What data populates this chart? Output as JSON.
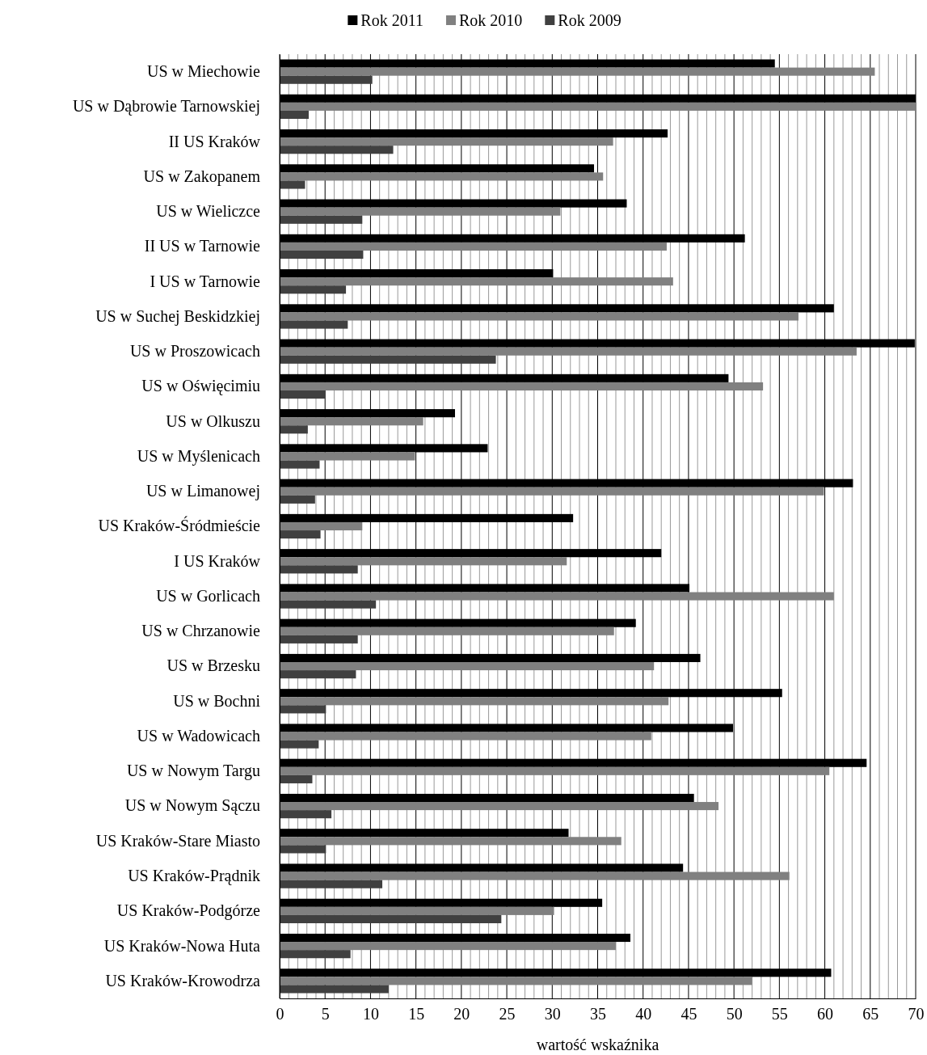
{
  "chart_data": {
    "type": "bar",
    "orientation": "horizontal",
    "xlabel": "wartość wskaźnika",
    "legend": "top",
    "grid": "x",
    "categories": [
      "US w Miechowie",
      "US w Dąbrowie Tarnowskiej",
      "II US Kraków",
      "US w Zakopanem",
      "US w Wieliczce",
      "II US w Tarnowie",
      "I US w Tarnowie",
      "US w Suchej Beskidzkiej",
      "US w Proszowicach",
      "US w Oświęcimiu",
      "US w Olkuszu",
      "US w Myślenicach",
      "US w Limanowej",
      "US Kraków-Śródmieście",
      "I US Kraków",
      "US w Gorlicach",
      "US w Chrzanowie",
      "US w Brzesku",
      "US w Bochni",
      "US w Wadowicach",
      "US w Nowym Targu",
      "US w Nowym Sączu",
      "US Kraków-Stare Miasto",
      "US Kraków-Prądnik",
      "US Kraków-Podgórze",
      "US Kraków-Nowa Huta",
      "US Kraków-Krowodrza"
    ],
    "series": [
      {
        "name": "Rok 2011",
        "color": "#000000",
        "values": [
          54.5,
          70,
          42.7,
          34.6,
          38.2,
          51.2,
          30.1,
          61.0,
          69.9,
          49.4,
          19.3,
          22.9,
          63.1,
          32.3,
          42.0,
          45.1,
          39.2,
          46.3,
          55.3,
          49.9,
          64.6,
          45.6,
          31.8,
          44.4,
          35.5,
          38.6,
          60.7
        ]
      },
      {
        "name": "Rok 2010",
        "color": "#808080",
        "values": [
          65.5,
          70,
          36.7,
          35.6,
          30.9,
          42.6,
          43.3,
          57.1,
          63.5,
          53.2,
          15.8,
          14.9,
          59.9,
          9.1,
          31.6,
          61.0,
          36.8,
          41.2,
          42.8,
          40.9,
          60.5,
          48.3,
          37.6,
          56.1,
          30.2,
          37.0,
          52.0
        ]
      },
      {
        "name": "Rok 2009",
        "color": "#404040",
        "values": [
          10.2,
          3.2,
          12.5,
          2.8,
          9.1,
          9.2,
          7.3,
          7.5,
          23.8,
          5.0,
          3.1,
          4.4,
          3.9,
          4.5,
          8.6,
          10.6,
          8.6,
          8.4,
          5.1,
          4.3,
          3.6,
          5.7,
          5.1,
          11.3,
          24.4,
          7.8,
          12.0
        ]
      }
    ],
    "xlim": [
      0,
      70
    ],
    "xticks": [
      0,
      {
        "value": 1,
        "label": null
      },
      {
        "value": 2,
        "label": null
      },
      {
        "value": 3,
        "label": null
      },
      {
        "value": 4,
        "label": null
      },
      5,
      {
        "value": 6,
        "label": null
      },
      {
        "value": 7,
        "label": null
      },
      {
        "value": 8,
        "label": null
      },
      {
        "value": 9,
        "label": null
      },
      10,
      {
        "value": 11,
        "label": null
      },
      {
        "value": 12,
        "label": null
      },
      {
        "value": 13,
        "label": null
      },
      {
        "value": 14,
        "label": null
      },
      15,
      {
        "value": 16,
        "label": null
      },
      {
        "value": 17,
        "label": null
      },
      {
        "value": 18,
        "label": null
      },
      {
        "value": 19,
        "label": null
      },
      20,
      {
        "value": 21,
        "label": null
      },
      {
        "value": 22,
        "label": null
      },
      {
        "value": 23,
        "label": null
      },
      {
        "value": 24,
        "label": null
      },
      25,
      {
        "value": 26,
        "label": null
      },
      {
        "value": 27,
        "label": null
      },
      {
        "value": 28,
        "label": null
      },
      {
        "value": 29,
        "label": null
      },
      30,
      {
        "value": 31,
        "label": null
      },
      {
        "value": 32,
        "label": null
      },
      {
        "value": 33,
        "label": null
      },
      {
        "value": 34,
        "label": null
      },
      35,
      {
        "value": 36,
        "label": null
      },
      {
        "value": 37,
        "label": null
      },
      {
        "value": 38,
        "label": null
      },
      {
        "value": 39,
        "label": null
      },
      40,
      {
        "value": 41,
        "label": null
      },
      {
        "value": 42,
        "label": null
      },
      {
        "value": 43,
        "label": null
      },
      {
        "value": 44,
        "label": null
      },
      45,
      {
        "value": 46,
        "label": null
      },
      {
        "value": 47,
        "label": null
      },
      {
        "value": 48,
        "label": null
      },
      {
        "value": 49,
        "label": null
      },
      50,
      {
        "value": 51,
        "label": null
      },
      {
        "value": 52,
        "label": null
      },
      {
        "value": 53,
        "label": null
      },
      {
        "value": 54,
        "label": null
      },
      55,
      {
        "value": 56,
        "label": null
      },
      {
        "value": 57,
        "label": null
      },
      {
        "value": 58,
        "label": null
      },
      {
        "value": 59,
        "label": null
      },
      60,
      {
        "value": 61,
        "label": null
      },
      {
        "value": 62,
        "label": null
      },
      {
        "value": 63,
        "label": null
      },
      {
        "value": 64,
        "label": null
      },
      65,
      {
        "value": 66,
        "label": null
      },
      {
        "value": 67,
        "label": null
      },
      {
        "value": 68,
        "label": null
      },
      {
        "value": 69,
        "label": null
      },
      70
    ]
  }
}
